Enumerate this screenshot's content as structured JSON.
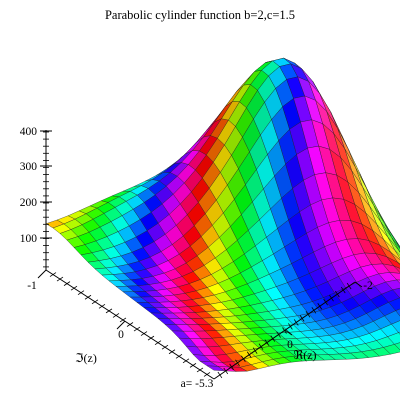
{
  "chart_data": {
    "type": "surface",
    "title": "Parabolic cylinder function b=2,c=1.5",
    "ylabel_imag": "ℑ(z)",
    "xlabel_real": "ℜ(z)",
    "z_ticks": [
      "100",
      "200",
      "300",
      "400"
    ],
    "imag_ticks": [
      "-1",
      "0"
    ],
    "real_ticks": [
      "-2",
      "0"
    ],
    "parameter_readout": "a= -5.3",
    "colors_note": "surface shaded by argument (hue)",
    "grid": true
  }
}
